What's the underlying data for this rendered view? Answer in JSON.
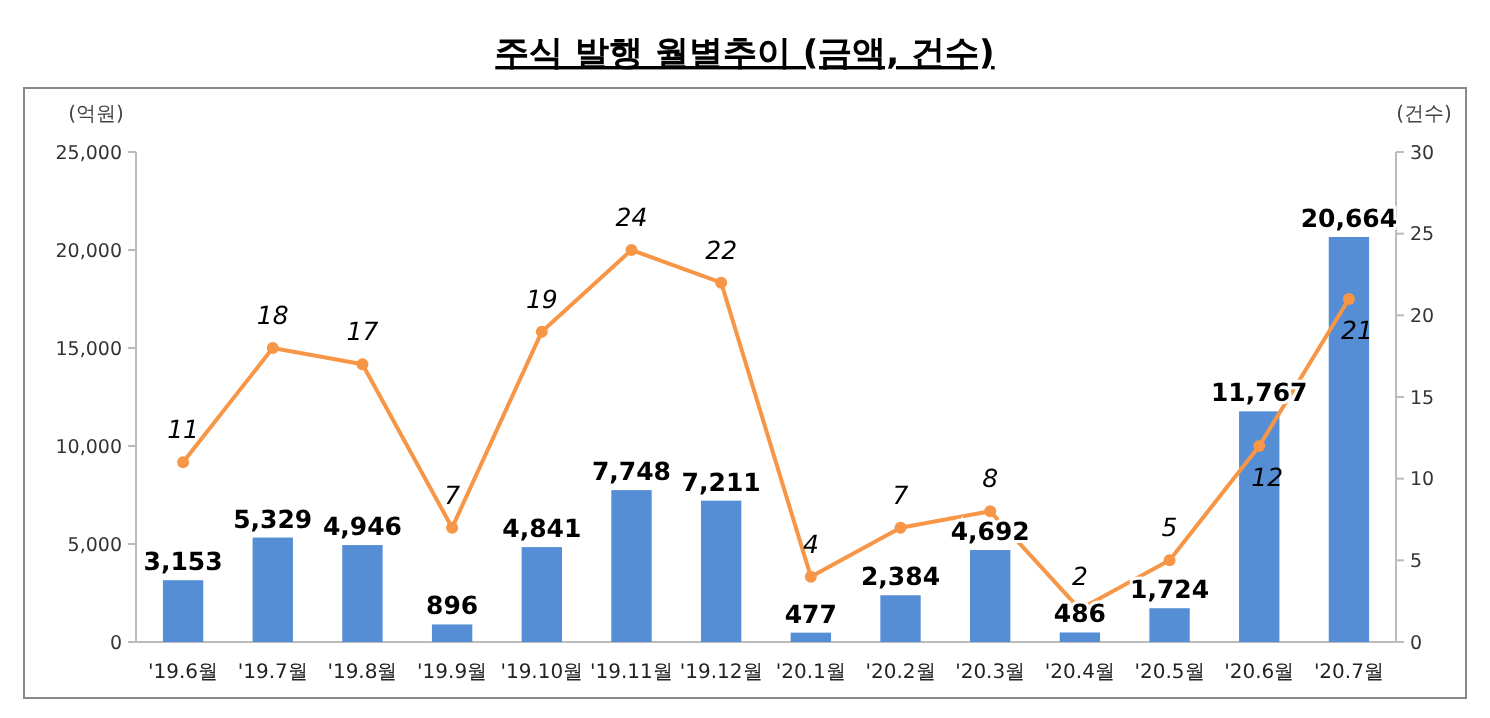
{
  "chart_data": {
    "type": "bar",
    "title": "주식 발행 월별추이 (금액, 건수)",
    "ylabel": "(억원)",
    "y2label": "(건수)",
    "categories": [
      "'19.6월",
      "'19.7월",
      "'19.8월",
      "'19.9월",
      "'19.10월",
      "'19.11월",
      "'19.12월",
      "'20.1월",
      "'20.2월",
      "'20.3월",
      "'20.4월",
      "'20.5월",
      "'20.6월",
      "'20.7월"
    ],
    "series": [
      {
        "color": "#558ed5",
        "values": [
          3153,
          5329,
          4946,
          896,
          4841,
          7748,
          7211,
          477,
          2384,
          4692,
          486,
          1724,
          11767,
          20664
        ],
        "value_labels": [
          "3,153",
          "5,329",
          "4,946",
          "896",
          "4,841",
          "7,748",
          "7,211",
          "477",
          "2,384",
          "4,692",
          "486",
          "1,724",
          "11,767",
          "20,664"
        ]
      },
      {
        "type": "line",
        "axis": "y2",
        "color": "#f79646",
        "marker": "circle",
        "values": [
          11,
          18,
          17,
          7,
          19,
          24,
          22,
          4,
          7,
          8,
          2,
          5,
          12,
          21
        ],
        "value_labels": [
          "11",
          "18",
          "17",
          "7",
          "19",
          "24",
          "22",
          "4",
          "7",
          "8",
          "2",
          "5",
          "12",
          "21"
        ]
      }
    ],
    "ylim": [
      0,
      25000
    ],
    "yticks": [
      {
        "value": 0,
        "label": "0"
      },
      {
        "value": 5000,
        "label": "5,000"
      },
      {
        "value": 10000,
        "label": "10,000"
      },
      {
        "value": 15000,
        "label": "15,000"
      },
      {
        "value": 20000,
        "label": "20,000"
      },
      {
        "value": 25000,
        "label": "25,000"
      }
    ],
    "y2lim": [
      0,
      30
    ],
    "y2ticks": [
      0,
      5,
      10,
      15,
      20,
      25,
      30
    ],
    "grid": false
  }
}
